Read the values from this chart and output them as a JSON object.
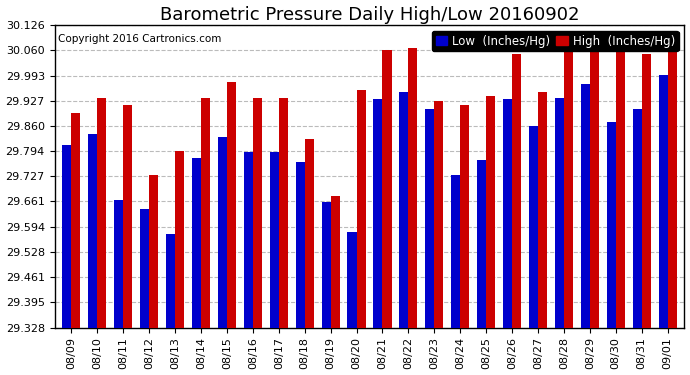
{
  "title": "Barometric Pressure Daily High/Low 20160902",
  "copyright": "Copyright 2016 Cartronics.com",
  "ylabel_low": "Low  (Inches/Hg)",
  "ylabel_high": "High  (Inches/Hg)",
  "background_color": "#ffffff",
  "plot_bg_color": "#ffffff",
  "low_color": "#0000cc",
  "high_color": "#cc0000",
  "ylim_min": 29.328,
  "ylim_max": 30.126,
  "yticks": [
    29.328,
    29.395,
    29.461,
    29.528,
    29.594,
    29.661,
    29.727,
    29.794,
    29.86,
    29.927,
    29.993,
    30.06,
    30.126
  ],
  "dates": [
    "08/09",
    "08/10",
    "08/11",
    "08/12",
    "08/13",
    "08/14",
    "08/15",
    "08/16",
    "08/17",
    "08/18",
    "08/19",
    "08/20",
    "08/21",
    "08/22",
    "08/23",
    "08/24",
    "08/25",
    "08/26",
    "08/27",
    "08/28",
    "08/29",
    "08/30",
    "08/31",
    "09/01"
  ],
  "low_values": [
    29.81,
    29.84,
    29.665,
    29.64,
    29.575,
    29.775,
    29.83,
    29.79,
    29.79,
    29.765,
    29.66,
    29.58,
    29.93,
    29.95,
    29.905,
    29.73,
    29.77,
    29.93,
    29.86,
    29.935,
    29.97,
    29.87,
    29.905,
    29.995
  ],
  "high_values": [
    29.895,
    29.935,
    29.915,
    29.73,
    29.795,
    29.935,
    29.975,
    29.935,
    29.935,
    29.825,
    29.675,
    29.955,
    30.06,
    30.065,
    29.925,
    29.915,
    29.94,
    30.05,
    29.95,
    30.1,
    30.06,
    30.06,
    30.05,
    30.11
  ],
  "grid_color": "#aaaaaa",
  "title_fontsize": 13,
  "tick_fontsize": 8,
  "legend_fontsize": 8.5,
  "copyright_fontsize": 7.5,
  "bar_width": 0.35
}
